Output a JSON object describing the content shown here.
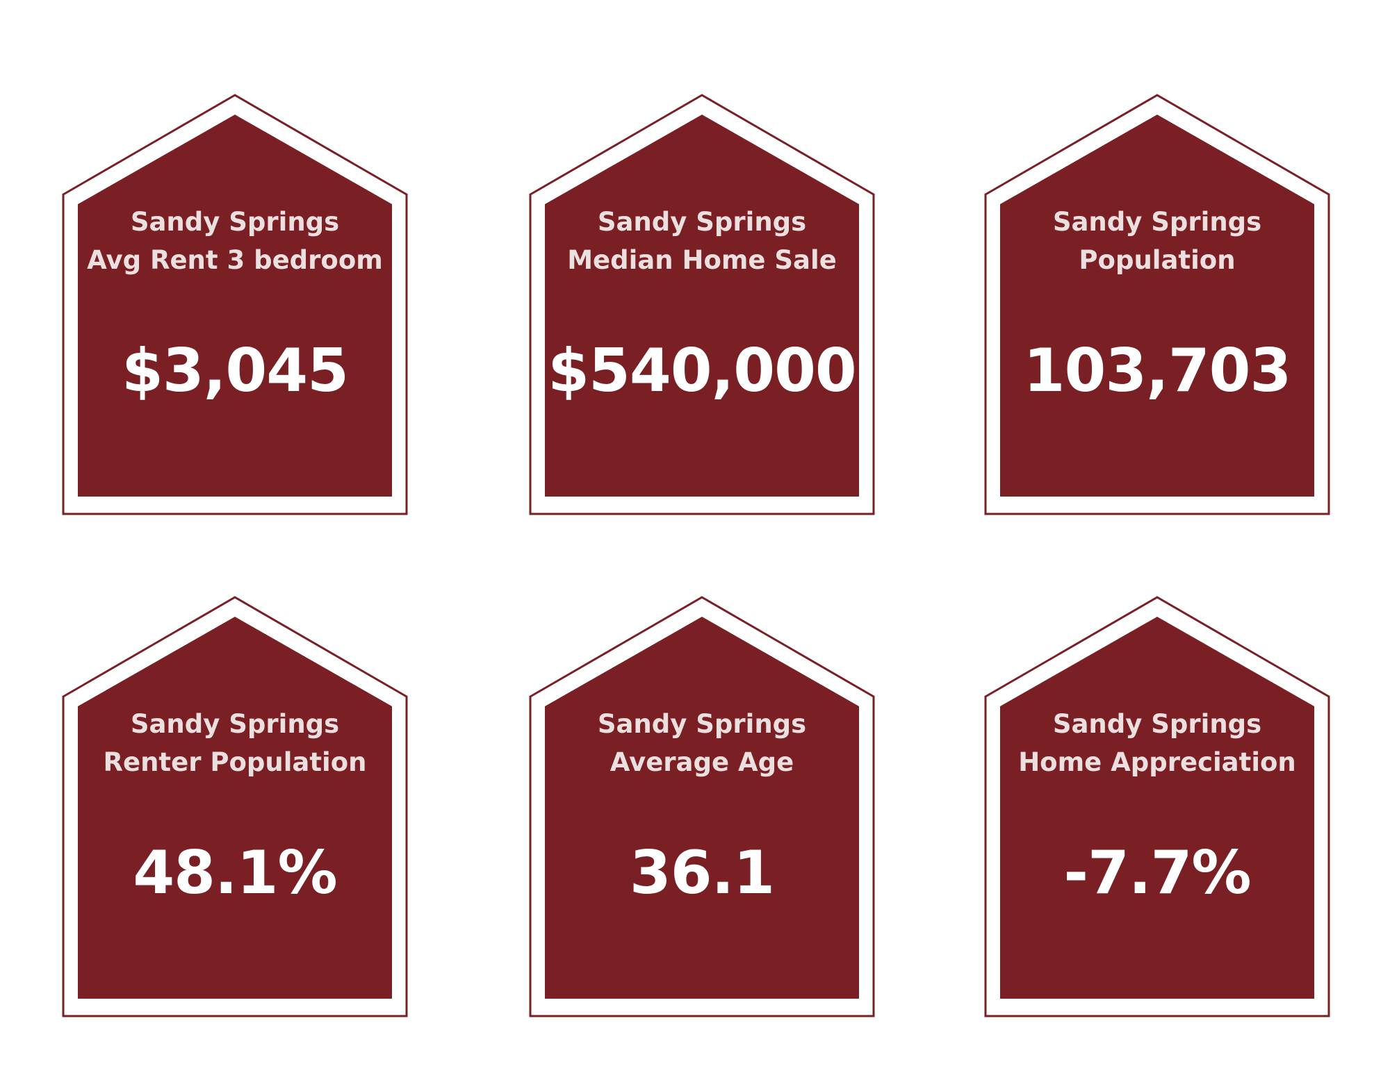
{
  "colors": {
    "house_fill": "#7a1f24",
    "house_outline": "#7a1f24",
    "label_text": "#ecdfe0",
    "value_text": "#ffffff",
    "background": "#ffffff"
  },
  "cards": [
    {
      "location": "Sandy Springs",
      "metric": "Avg Rent 3 bedroom",
      "value": "$3,045"
    },
    {
      "location": "Sandy Springs",
      "metric": "Median Home Sale",
      "value": "$540,000"
    },
    {
      "location": "Sandy Springs",
      "metric": "Population",
      "value": "103,703"
    },
    {
      "location": "Sandy Springs",
      "metric": "Renter Population",
      "value": "48.1%"
    },
    {
      "location": "Sandy Springs",
      "metric": "Average Age",
      "value": "36.1"
    },
    {
      "location": "Sandy Springs",
      "metric": "Home Appreciation",
      "value": "-7.7%"
    }
  ]
}
